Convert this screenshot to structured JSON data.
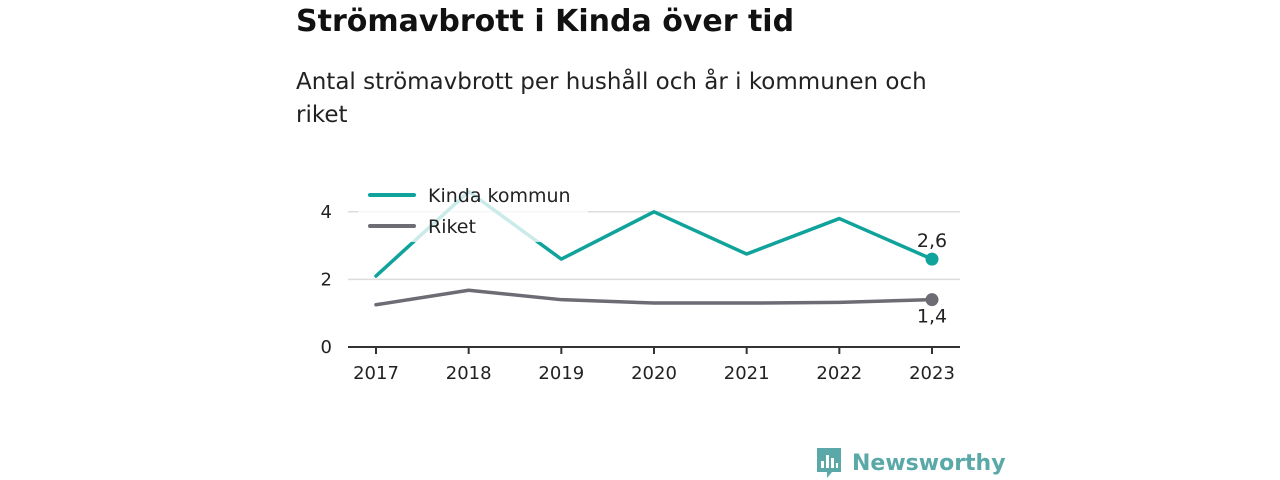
{
  "title": "Strömavbrott i Kinda över tid",
  "subtitle": "Antal strömavbrott per hushåll och år i kommunen och riket",
  "brand": {
    "name": "Newsworthy",
    "icon": "newsworthy-logo-icon",
    "color": "#5aa9a8"
  },
  "chart_data": {
    "type": "line",
    "x": [
      2017,
      2018,
      2019,
      2020,
      2021,
      2022,
      2023
    ],
    "x_tick_labels": [
      "2017",
      "2018",
      "2019",
      "2020",
      "2021",
      "2022",
      "2023"
    ],
    "y_ticks": [
      0,
      2,
      4
    ],
    "y_tick_labels": [
      "0",
      "2",
      "4"
    ],
    "ylim": [
      0,
      5
    ],
    "grid": true,
    "legend_position": "top-left",
    "series": [
      {
        "name": "Kinda kommun",
        "color": "#10a39c",
        "values": [
          2.1,
          4.6,
          2.6,
          4.0,
          2.75,
          3.8,
          2.6
        ],
        "end_label": "2,6"
      },
      {
        "name": "Riket",
        "color": "#6d6b74",
        "values": [
          1.25,
          1.68,
          1.4,
          1.3,
          1.3,
          1.32,
          1.4
        ],
        "end_label": "1,4"
      }
    ]
  }
}
